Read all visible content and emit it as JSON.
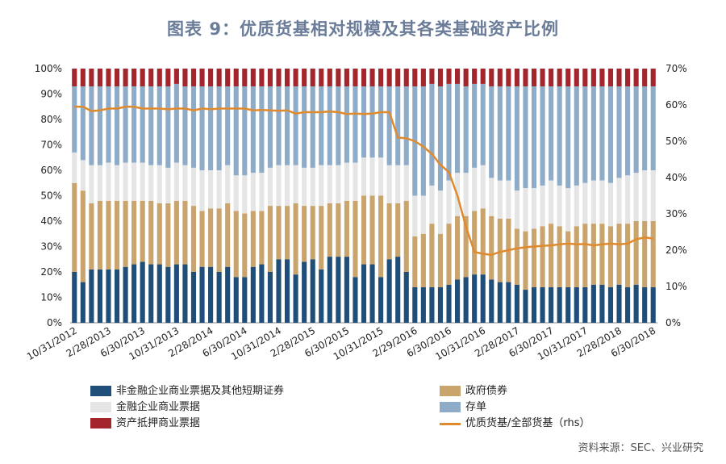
{
  "title": "图表 9：优质货基相对规模及其各类基础资产比例",
  "source": "资料来源：SEC、兴业研究",
  "colors": {
    "nonfin_cp": "#1f4e79",
    "gov": "#c9a46d",
    "fin_cp": "#e5e5e5",
    "cd": "#8eacc8",
    "abcp": "#a3262c",
    "line": "#e08a2e"
  },
  "legend": {
    "nonfin_cp": "非金融企业商业票据及其他短期证券",
    "fin_cp": "金融企业商业票据",
    "abcp": "资产抵押商业票据",
    "gov": "政府债券",
    "cd": "存单",
    "ratio": "优质货基/全部货基（rhs）"
  },
  "chart_data": {
    "type": "bar",
    "stacked": true,
    "title": "图表 9：优质货基相对规模及其各类基础资产比例",
    "x_tick_labels": [
      "10/31/2012",
      "2/28/2013",
      "6/30/2013",
      "10/31/2013",
      "2/28/2014",
      "6/30/2014",
      "10/31/2014",
      "2/28/2015",
      "6/30/2015",
      "10/31/2015",
      "2/29/2016",
      "6/30/2016",
      "10/31/2016",
      "2/28/2017",
      "6/30/2017",
      "10/31/2017",
      "2/28/2018",
      "6/30/2018"
    ],
    "left_axis": {
      "ylim": [
        0,
        100
      ],
      "ticks": [
        "0%",
        "10%",
        "20%",
        "30%",
        "40%",
        "50%",
        "60%",
        "70%",
        "80%",
        "90%",
        "100%"
      ]
    },
    "right_axis": {
      "ylim": [
        0,
        70
      ],
      "ticks": [
        "0%",
        "10%",
        "20%",
        "30%",
        "40%",
        "50%",
        "60%",
        "70%"
      ]
    },
    "series": [
      {
        "name": "非金融企业商业票据及其他短期证券",
        "key": "nonfin_cp",
        "values": [
          20,
          16,
          21,
          21,
          21,
          21,
          22,
          23,
          24,
          23,
          23,
          22,
          23,
          23,
          20,
          22,
          22,
          20,
          22,
          18,
          18,
          22,
          23,
          20,
          25,
          25,
          19,
          24,
          25,
          21,
          26,
          26,
          26,
          18,
          23,
          23,
          18,
          25,
          26,
          20,
          14,
          14,
          14,
          14,
          15,
          17,
          18,
          19,
          19,
          17,
          16,
          16,
          15,
          13,
          14,
          14,
          14,
          14,
          14,
          14,
          14,
          15,
          15,
          14,
          15,
          14,
          15,
          14,
          14
        ]
      },
      {
        "name": "政府债券",
        "key": "gov",
        "values": [
          35,
          36,
          26,
          27,
          27,
          27,
          26,
          25,
          24,
          25,
          24,
          25,
          25,
          25,
          26,
          22,
          23,
          25,
          25,
          26,
          25,
          22,
          21,
          26,
          21,
          21,
          28,
          22,
          21,
          25,
          21,
          21,
          22,
          30,
          27,
          27,
          32,
          22,
          21,
          28,
          20,
          21,
          25,
          21,
          24,
          25,
          24,
          25,
          26,
          25,
          25,
          25,
          22,
          23,
          23,
          24,
          25,
          24,
          22,
          24,
          25,
          24,
          24,
          24,
          24,
          25,
          25,
          26,
          26
        ]
      },
      {
        "name": "金融企业商业票据",
        "key": "fin_cp",
        "values": [
          12,
          12,
          15,
          14,
          15,
          14,
          15,
          15,
          15,
          14,
          15,
          14,
          15,
          14,
          15,
          16,
          15,
          15,
          15,
          14,
          15,
          15,
          15,
          15,
          16,
          16,
          15,
          15,
          15,
          16,
          15,
          15,
          15,
          15,
          15,
          15,
          15,
          15,
          15,
          14,
          16,
          15,
          15,
          17,
          17,
          17,
          17,
          17,
          17,
          15,
          15,
          15,
          15,
          17,
          16,
          16,
          17,
          16,
          17,
          16,
          16,
          17,
          17,
          17,
          18,
          19,
          19,
          20,
          20
        ]
      },
      {
        "name": "存单",
        "key": "cd",
        "values": [
          26,
          29,
          31,
          31,
          30,
          31,
          30,
          30,
          30,
          31,
          31,
          32,
          31,
          31,
          32,
          33,
          33,
          33,
          31,
          35,
          35,
          34,
          34,
          32,
          31,
          31,
          31,
          32,
          32,
          31,
          31,
          31,
          30,
          30,
          28,
          28,
          28,
          31,
          31,
          31,
          43,
          43,
          40,
          41,
          38,
          35,
          34,
          33,
          32,
          36,
          37,
          37,
          41,
          40,
          40,
          39,
          37,
          39,
          40,
          39,
          38,
          37,
          37,
          38,
          36,
          35,
          34,
          33,
          33
        ]
      },
      {
        "name": "资产抵押商业票据",
        "key": "abcp",
        "values": [
          7,
          7,
          7,
          7,
          7,
          7,
          7,
          7,
          7,
          7,
          7,
          7,
          6,
          7,
          7,
          7,
          7,
          7,
          7,
          7,
          7,
          7,
          7,
          7,
          7,
          7,
          7,
          7,
          7,
          7,
          7,
          7,
          7,
          7,
          7,
          7,
          7,
          7,
          7,
          7,
          7,
          7,
          6,
          7,
          6,
          6,
          7,
          6,
          6,
          7,
          7,
          7,
          7,
          7,
          7,
          7,
          7,
          7,
          7,
          7,
          7,
          7,
          7,
          7,
          7,
          7,
          7,
          7,
          7
        ]
      },
      {
        "name": "优质货基/全部货基（rhs）",
        "key": "ratio",
        "type": "line",
        "axis": "right",
        "values": [
          59.5,
          59.5,
          58.3,
          58.5,
          59,
          59,
          59.5,
          59.5,
          59,
          59,
          59,
          58.8,
          59,
          59,
          58.5,
          59,
          58.8,
          59,
          59,
          59,
          59,
          58.5,
          58.6,
          58.5,
          58.4,
          58.5,
          57.6,
          58,
          58,
          58,
          58.2,
          58,
          57.5,
          57.6,
          57.5,
          57.6,
          58,
          58,
          51,
          50.8,
          50,
          48.5,
          46.5,
          43.5,
          41.5,
          35,
          26.5,
          19.5,
          19,
          18.7,
          19.5,
          20,
          20.5,
          20.8,
          21,
          21.2,
          21.3,
          21.6,
          21.8,
          21.6,
          21.7,
          21.3,
          21.6,
          21.8,
          21.6,
          21.8,
          23,
          23.5,
          23.2
        ]
      }
    ]
  }
}
